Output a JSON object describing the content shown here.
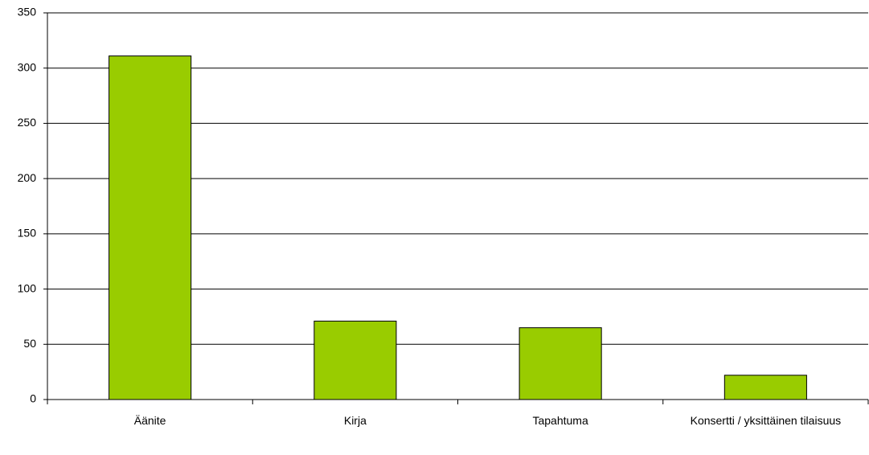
{
  "chart_data": {
    "type": "bar",
    "categories": [
      "Äänite",
      "Kirja",
      "Tapahtuma",
      "Konsertti / yksittäinen tilaisuus"
    ],
    "values": [
      311,
      71,
      65,
      22
    ],
    "color": "#99cc00",
    "ylim": [
      0,
      350
    ],
    "yticks": [
      0,
      50,
      100,
      150,
      200,
      250,
      300,
      350
    ],
    "grid": true
  }
}
